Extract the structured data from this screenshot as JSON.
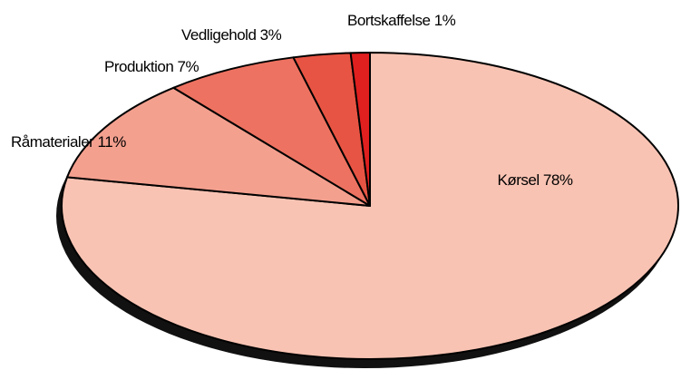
{
  "chart_data": {
    "type": "pie",
    "categories": [
      "Kørsel",
      "Råmaterialer",
      "Produktion",
      "Vedligehold",
      "Bortskaffelse"
    ],
    "values": [
      78,
      11,
      7,
      3,
      1
    ],
    "value_labels": [
      "78%",
      "11%",
      "7%",
      "3%",
      "1%"
    ],
    "colors": [
      "#f9c3b3",
      "#f4a08f",
      "#ee7261",
      "#e85443",
      "#e01f1f"
    ]
  }
}
